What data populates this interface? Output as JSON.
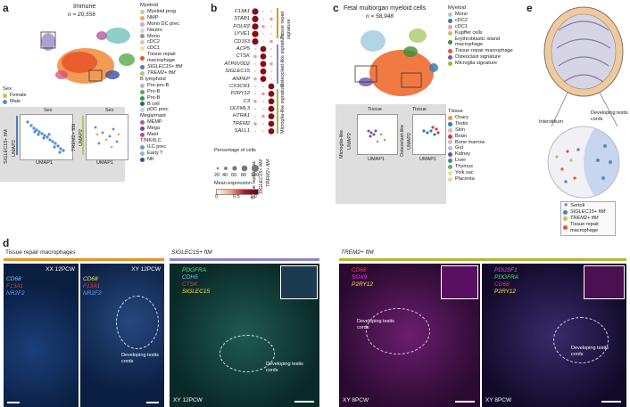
{
  "panels": {
    "a": {
      "label": "a",
      "title": "Immune",
      "n": "n = 20,556",
      "sex_legend": {
        "title": "Sex",
        "items": [
          {
            "label": "Female",
            "color": "#f2b035"
          },
          {
            "label": "Male",
            "color": "#4f8fd0"
          }
        ]
      },
      "groups": [
        {
          "title": "Myeloid",
          "items": [
            {
              "label": "Myeloid prog",
              "color": "#aad6a4"
            },
            {
              "label": "NMP",
              "color": "#f3a564"
            },
            {
              "label": "Mono DC prec",
              "color": "#c7aed6"
            },
            {
              "label": "Neutro",
              "color": "#d6d6d6"
            },
            {
              "label": "Mono",
              "color": "#a98a79"
            },
            {
              "label": "cDC2",
              "color": "#d7c3c6"
            },
            {
              "label": "cDC1",
              "color": "#f0e29b"
            },
            {
              "label": "Tissue repair macrophage",
              "color": "#e8572a"
            },
            {
              "label": "SIGLEC15+ ftM",
              "color": "#4d7fb5"
            },
            {
              "label": "TREM2+ ftM",
              "color": "#b3c95a"
            }
          ]
        },
        {
          "title": "B lymphoid",
          "items": [
            {
              "label": "Pre-pro-B",
              "color": "#b9b4d6"
            },
            {
              "label": "Pro-B",
              "color": "#5aa74c"
            },
            {
              "label": "Pre-B",
              "color": "#3b8f5a"
            },
            {
              "label": "B cell",
              "color": "#2e6e50"
            },
            {
              "label": "pDC prec",
              "color": "#cfcfcf"
            }
          ]
        },
        {
          "title": "Mega/mast",
          "items": [
            {
              "label": "MEMP",
              "color": "#b05d9c"
            },
            {
              "label": "Mega",
              "color": "#6a4fa3"
            },
            {
              "label": "Mast",
              "color": "#c9497a"
            }
          ]
        },
        {
          "title": "T/NK/ILC",
          "items": [
            {
              "label": "ILC prec",
              "color": "#8a8fc2"
            },
            {
              "label": "Early T",
              "color": "#7ac6c2"
            },
            {
              "label": "NK",
              "color": "#3c4fa0"
            }
          ]
        }
      ],
      "inset_left": {
        "title": "Sex",
        "ylabel": "SIGLEC15+ ftM",
        "xlabel": "UMAP1",
        "yaxis": "UMAP2"
      },
      "inset_right": {
        "title": "Sex",
        "ylabel": "TREM2+ ftM",
        "xlabel": "UMAP1",
        "yaxis": "UMAP2"
      }
    },
    "b": {
      "label": "b",
      "genes": [
        "F13A1",
        "STAB1",
        "FOLR2",
        "LYVE1",
        "CD163",
        "ACP5",
        "CTSK",
        "ATP6V0D2",
        "SIGLEC15",
        "ANPEP",
        "CX3CR1",
        "P2RY12",
        "C3",
        "OLFML3",
        "HTRA1",
        "TREM2",
        "SALL1"
      ],
      "columns": [
        "Tissue repair mac",
        "SIGLEC15+ ftM",
        "TREM2+ ftM"
      ],
      "signatures": [
        {
          "label": "Tissue repair signature",
          "color": "#e8922a"
        },
        {
          "label": "Osteoclast-like signature",
          "color": "#8c86c4"
        },
        {
          "label": "Microglia-like signature",
          "color": "#b3b43a"
        }
      ],
      "pct_title": "Percentage of cells",
      "pct_ticks": [
        "20",
        "40",
        "60",
        "80",
        "100"
      ],
      "expr_title": "Mean expression",
      "expr_ticks": [
        "0",
        "0.5",
        "1.0"
      ]
    },
    "c": {
      "label": "c",
      "title": "Fetal multiorgan myeloid cells",
      "n": "n = 58,948",
      "myeloid_title": "Myeloid",
      "myeloid": [
        {
          "label": "Mono",
          "color": "#a4cce0"
        },
        {
          "label": "cDC2",
          "color": "#3c7ab0"
        },
        {
          "label": "cDC1",
          "color": "#f0a5a0"
        },
        {
          "label": "Kupffer cells",
          "color": "#b0cc70"
        },
        {
          "label": "Erythroblastic island macrophage",
          "color": "#3a8f3a"
        },
        {
          "label": "Tissue repair macrophage",
          "color": "#e8572a"
        },
        {
          "label": "Osteoclast signature",
          "color": "#7a5aa8"
        },
        {
          "label": "Microglia signature",
          "color": "#a8b030"
        }
      ],
      "tissue_title": "Tissue",
      "tissues": [
        {
          "label": "Ovary",
          "color": "#e89a3a"
        },
        {
          "label": "Testis",
          "color": "#2e7db5"
        },
        {
          "label": "Skin",
          "color": "#e8b0c0"
        },
        {
          "label": "Brain",
          "color": "#d04040"
        },
        {
          "label": "Bone marrow",
          "color": "#c0c0c0"
        },
        {
          "label": "Gut",
          "color": "#a0c8e8"
        },
        {
          "label": "Kidney",
          "color": "#7a4aa0"
        },
        {
          "label": "Liver",
          "color": "#3a8f8a"
        },
        {
          "label": "Thymus",
          "color": "#6ab04c"
        },
        {
          "label": "Yolk sac",
          "color": "#e0e0a0"
        },
        {
          "label": "Placenta",
          "color": "#f0d0b0"
        }
      ],
      "inset_left": {
        "title": "Tissue",
        "ylabel": "Microglia-like",
        "yaxis": "UMAP2",
        "xlabel": "UMAP1"
      },
      "inset_right": {
        "title": "Tissue",
        "ylabel": "Osteoclast-like",
        "yaxis": "UMAP2",
        "xlabel": "UMAP1"
      }
    },
    "d": {
      "label": "d",
      "sections": [
        {
          "title": "Tissue repair macrophages",
          "color": "#e8922a"
        },
        {
          "title": "SIGLEC15+ ftM",
          "color": "#8c86c4"
        },
        {
          "title": "TREM2+ ftM",
          "color": "#b3b43a"
        }
      ],
      "images": [
        {
          "sample": "XX 12PCW",
          "markers": [
            {
              "text": "CD68",
              "color": "#6ad0ff"
            },
            {
              "text": "F13A1",
              "color": "#ff3030"
            },
            {
              "text": "NR2F2",
              "color": "#5aa0ff"
            }
          ],
          "annotation": ""
        },
        {
          "sample": "XY 12PCW",
          "markers": [
            {
              "text": "CD68",
              "color": "#ffe040"
            },
            {
              "text": "F13A1",
              "color": "#ff3030"
            },
            {
              "text": "NR2F2",
              "color": "#5aa0ff"
            }
          ],
          "annotation": "Developing testis cords"
        },
        {
          "sample": "XY 12PCW",
          "markers": [
            {
              "text": "PDGFRA",
              "color": "#50e070"
            },
            {
              "text": "CDH5",
              "color": "#60d0ff"
            },
            {
              "text": "CTSK",
              "color": "#ff3050"
            },
            {
              "text": "SIGLEC15",
              "color": "#ffe040"
            }
          ],
          "annotation": "Developing testis cords"
        },
        {
          "sample": "XY 8PCW",
          "markers": [
            {
              "text": "CD68",
              "color": "#ff3050"
            },
            {
              "text": "SOX9",
              "color": "#ff40ff"
            },
            {
              "text": "P2RY12",
              "color": "#ffe040"
            }
          ],
          "annotation": "Developing testis cords"
        },
        {
          "sample": "XY 8PCW",
          "markers": [
            {
              "text": "PDUSF1",
              "color": "#ff40ff"
            },
            {
              "text": "PDGFRA",
              "color": "#50e070"
            },
            {
              "text": "CD68",
              "color": "#ff3050"
            },
            {
              "text": "P2RY12",
              "color": "#ffe040"
            }
          ],
          "annotation": "Developing testis cords"
        }
      ]
    },
    "e": {
      "label": "e",
      "interstitium": "Interstitium",
      "cords": "Developing testis cords",
      "legend": [
        {
          "label": "Sertoli",
          "color": "#4a8fd0"
        },
        {
          "label": "SIGLEC15+ ftM",
          "color": "#4d7fb5"
        },
        {
          "label": "TREM2+ ftM",
          "color": "#b3c95a"
        },
        {
          "label": "Tissue repair macrophage",
          "color": "#e8572a"
        }
      ]
    }
  }
}
